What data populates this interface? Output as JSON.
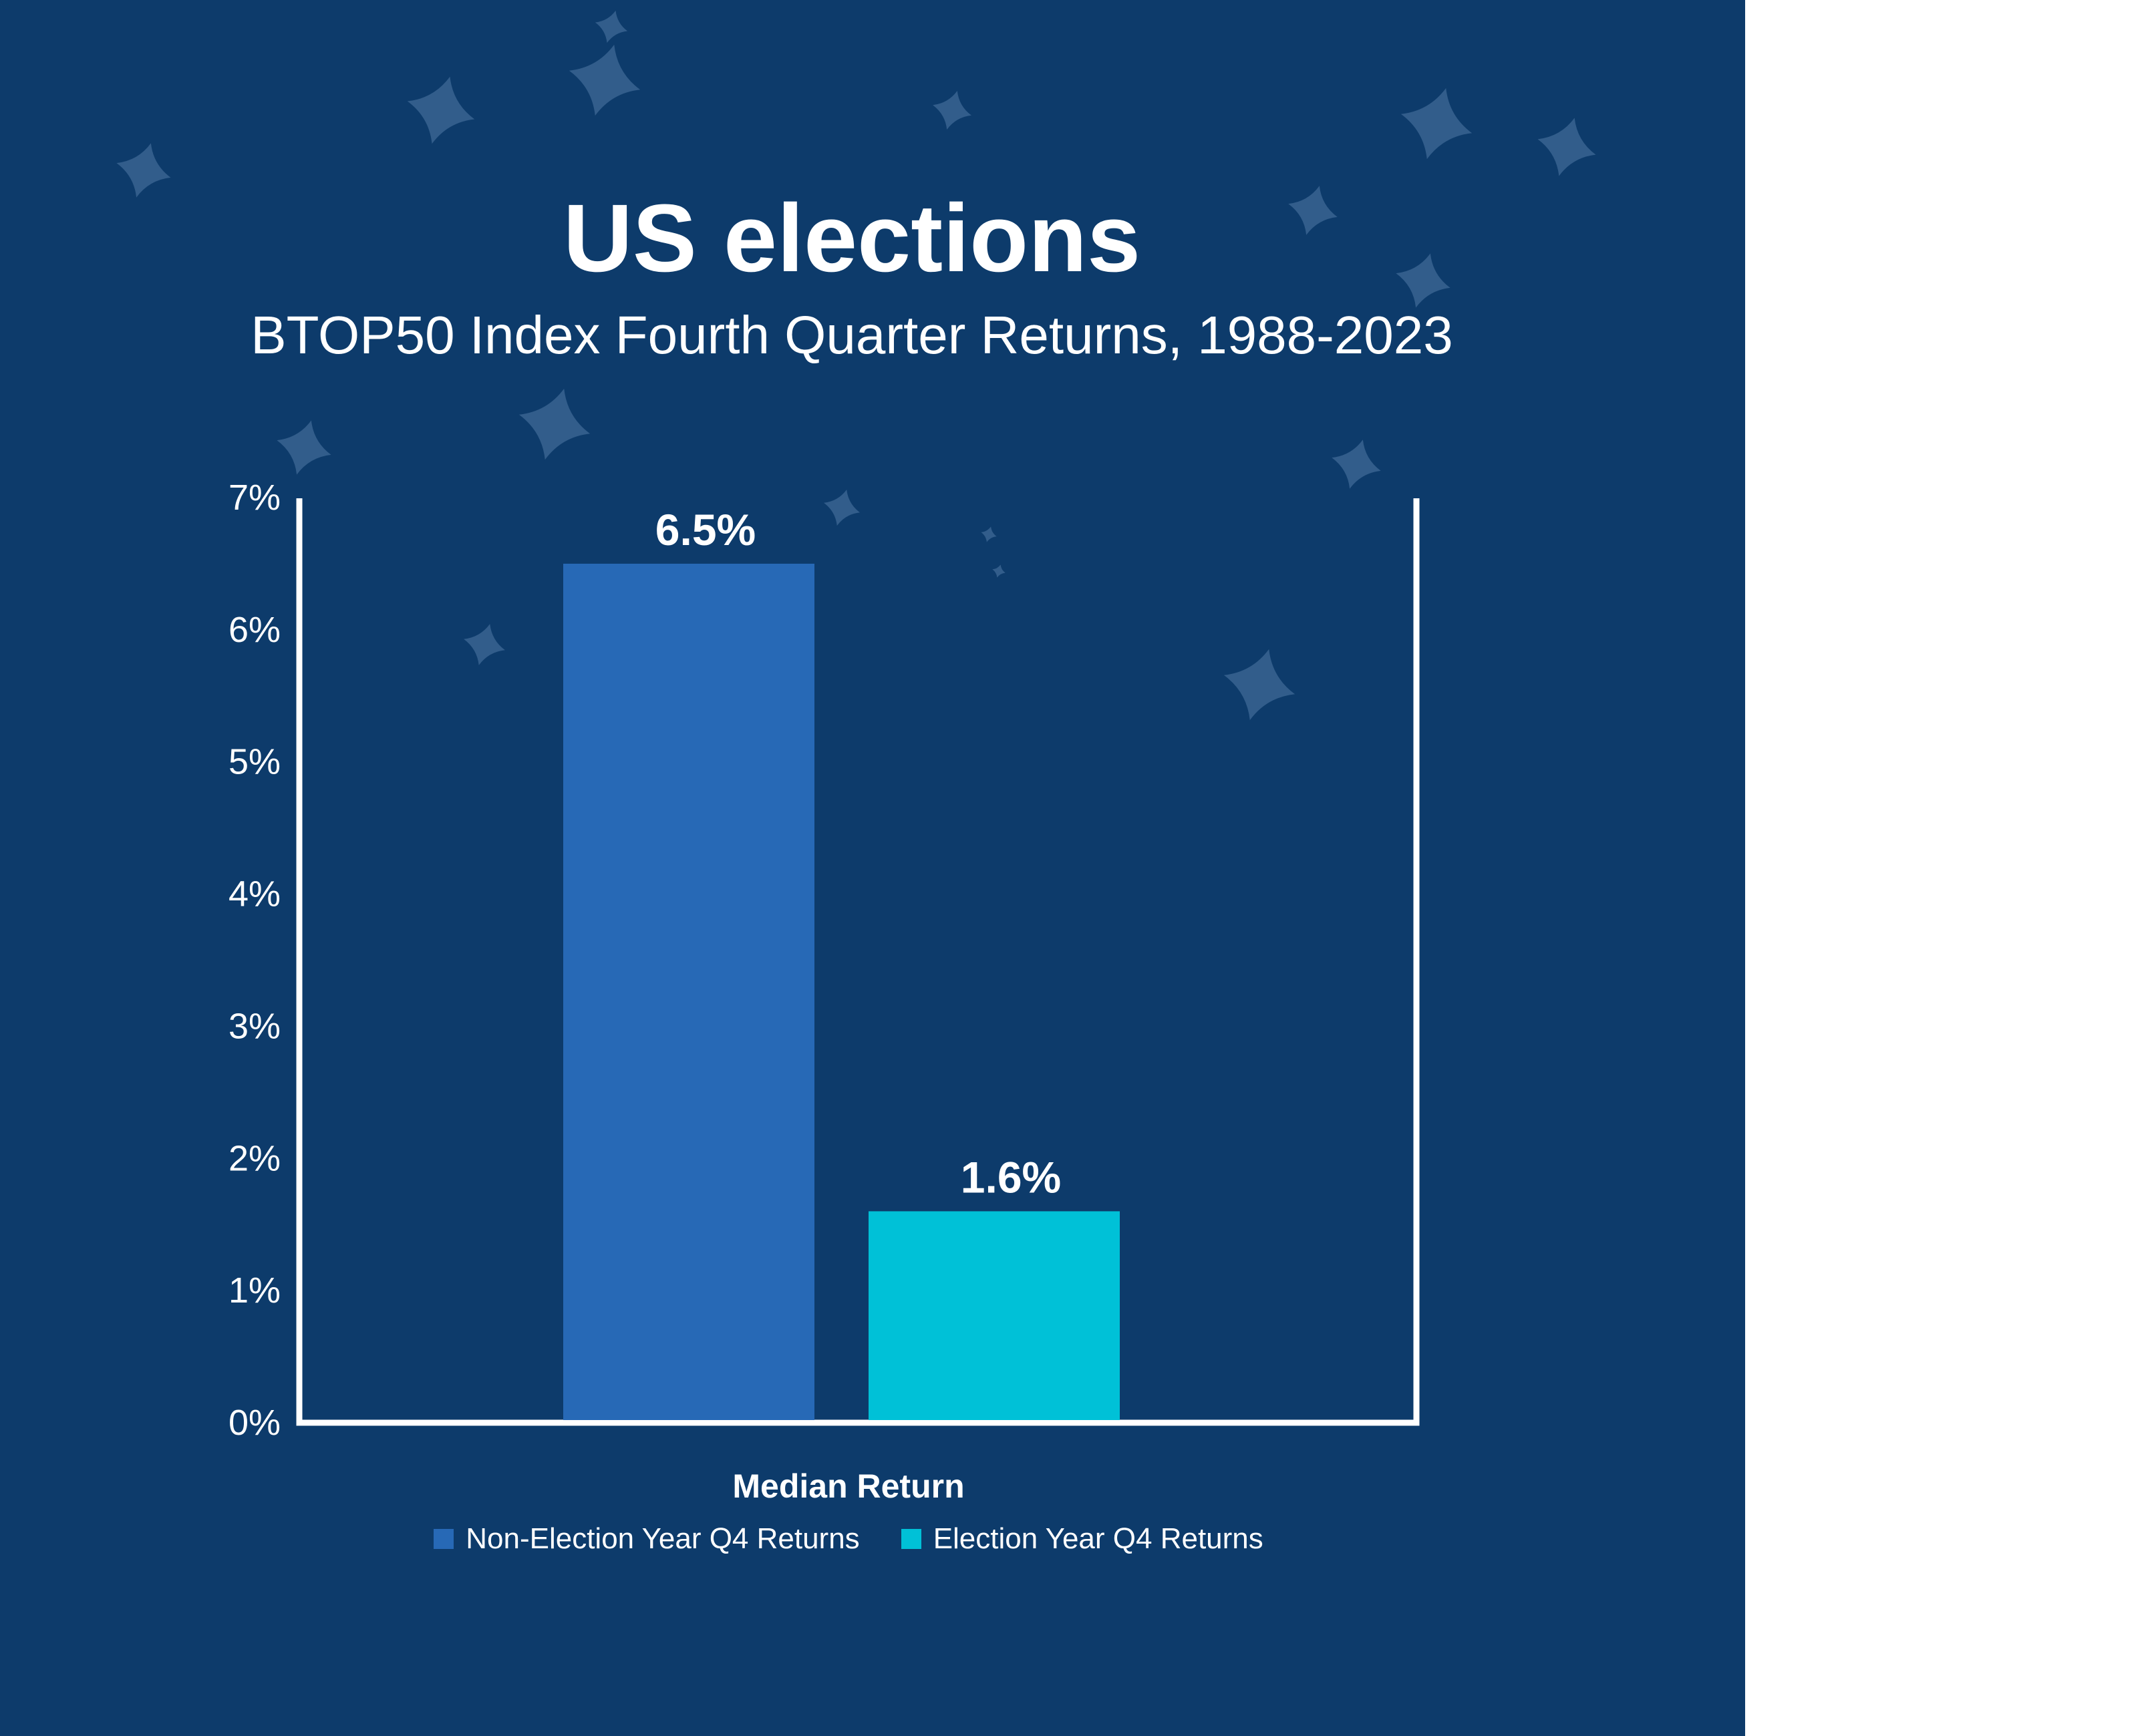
{
  "colors": {
    "background": "#0d3b6b",
    "non_election": "#2769b6",
    "election": "#00c1d7",
    "axis": "#ffffff",
    "star": "#3f6a95"
  },
  "chart_data": {
    "type": "bar",
    "title": "US elections",
    "subtitle": "BTOP50 Index Fourth Quarter Returns, 1988-2023",
    "xlabel": "Median Return",
    "ylabel": "",
    "ylim": [
      0,
      7
    ],
    "yticks": [
      "0%",
      "1%",
      "2%",
      "3%",
      "4%",
      "5%",
      "6%",
      "7%"
    ],
    "categories": [
      "Median Return"
    ],
    "series": [
      {
        "name": "Non-Election Year Q4 Returns",
        "values": [
          6.5
        ],
        "label": "6.5%",
        "color": "#2769b6"
      },
      {
        "name": "Election Year Q4 Returns",
        "values": [
          1.6
        ],
        "label": "1.6%",
        "color": "#00c1d7"
      }
    ],
    "grid": false,
    "legend": "bottom"
  }
}
